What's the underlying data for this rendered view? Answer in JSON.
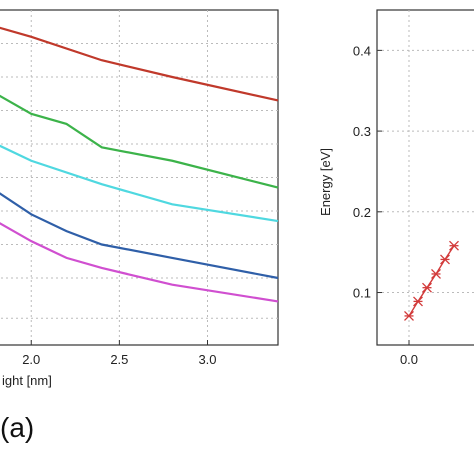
{
  "panel_label": "(a)",
  "chart_data": [
    {
      "type": "line",
      "title": "",
      "xlabel": "ight [nm]",
      "ylabel": "",
      "xlim": [
        1.8,
        3.4
      ],
      "xticks": [
        "2.0",
        "2.5",
        "3.0"
      ],
      "xtick_values": [
        2.0,
        2.5,
        3.0
      ],
      "grid": true,
      "series": [
        {
          "color": "#c0392b",
          "x": [
            1.8,
            2.0,
            2.4,
            2.8,
            3.4
          ],
          "y": [
            0.95,
            0.92,
            0.85,
            0.8,
            0.73
          ]
        },
        {
          "color": "#3cb34a",
          "x": [
            1.8,
            2.0,
            2.2,
            2.4,
            2.8,
            3.4
          ],
          "y": [
            0.75,
            0.69,
            0.66,
            0.59,
            0.55,
            0.47
          ]
        },
        {
          "color": "#4fd8e0",
          "x": [
            1.8,
            2.0,
            2.4,
            2.8,
            3.4
          ],
          "y": [
            0.6,
            0.55,
            0.48,
            0.42,
            0.37
          ]
        },
        {
          "color": "#2f5fa8",
          "x": [
            1.8,
            2.0,
            2.2,
            2.4,
            2.8,
            3.4
          ],
          "y": [
            0.46,
            0.39,
            0.34,
            0.3,
            0.26,
            0.2
          ]
        },
        {
          "color": "#d04fd0",
          "x": [
            1.8,
            2.0,
            2.2,
            2.4,
            2.8,
            3.4
          ],
          "y": [
            0.37,
            0.31,
            0.26,
            0.23,
            0.18,
            0.13
          ]
        }
      ]
    },
    {
      "type": "scatter",
      "title": "",
      "xlabel": "",
      "ylabel": "Energy [eV]",
      "ylim": [
        0.035,
        0.45
      ],
      "yticks": [
        "0.1",
        "0.2",
        "0.3",
        "0.4"
      ],
      "ytick_values": [
        0.1,
        0.2,
        0.3,
        0.4
      ],
      "xlim": [
        -0.05,
        0.55
      ],
      "xticks": [
        "0.0"
      ],
      "xtick_values": [
        0.0
      ],
      "grid": true,
      "marker": "asterisk",
      "series": [
        {
          "color": "#d23a3a",
          "x": [
            0.0,
            0.05,
            0.1,
            0.15,
            0.2,
            0.25
          ],
          "y": [
            0.071,
            0.089,
            0.106,
            0.123,
            0.141,
            0.158
          ]
        }
      ]
    }
  ]
}
